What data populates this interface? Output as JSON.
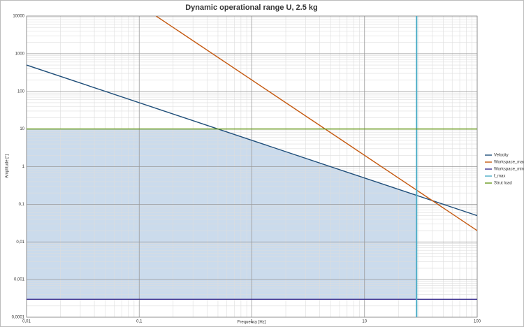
{
  "chart_data": {
    "type": "line",
    "title": "Dynamic operational range U, 2.5 kg",
    "x_label": "Frequency [Hz]",
    "y_label": "Amplitude [°]",
    "log_x": true,
    "log_y": true,
    "grid": true,
    "legend": "right",
    "xlim": [
      0.01,
      100
    ],
    "xticks": [
      {
        "value": 0.01,
        "label": "0,01"
      },
      {
        "value": 0.1,
        "label": "0,1"
      },
      1,
      10,
      100
    ],
    "ylim": [
      0.0001,
      10000
    ],
    "yticks": [
      {
        "value": 0.0001,
        "label": "0,0001"
      },
      {
        "value": 0.001,
        "label": "0,001"
      },
      {
        "value": 0.01,
        "label": "0,01"
      },
      {
        "value": 0.1,
        "label": "0,1"
      },
      1,
      10,
      100,
      1000,
      10000
    ],
    "series": [
      {
        "name": "Velocity",
        "color": "#1f4e79",
        "x": [
          0.01,
          100
        ],
        "values": [
          500,
          0.05
        ]
      },
      {
        "name": "Workspace_max",
        "color": "#c55a11",
        "x": [
          0.1414,
          100
        ],
        "values": [
          10000,
          0.02
        ]
      },
      {
        "name": "Workspace_min",
        "color": "#3b2f8f",
        "x": [
          0.01,
          100
        ],
        "values": [
          0.0003,
          0.0003
        ]
      },
      {
        "name": "f_max",
        "color": "#4bacc6",
        "x": [
          29,
          29
        ],
        "values": [
          0.0001,
          10000
        ]
      },
      {
        "name": "Strut load",
        "color": "#6a9a1f",
        "x": [
          0.01,
          100
        ],
        "values": [
          10,
          10
        ]
      }
    ]
  }
}
